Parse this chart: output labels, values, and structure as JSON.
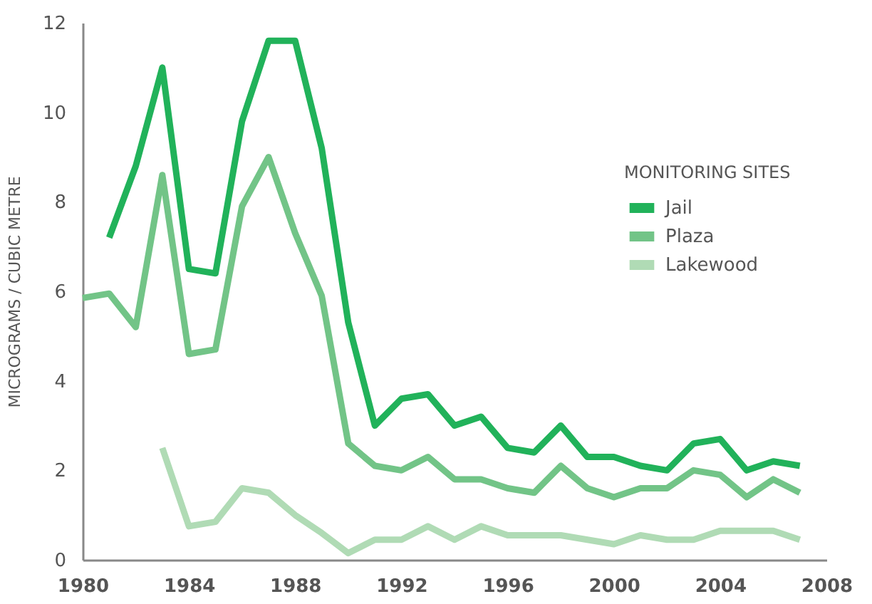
{
  "chart_data": {
    "type": "line",
    "ylabel": "MICROGRAMS / CUBIC METRE",
    "legend_title": "MONITORING SITES",
    "legend": "top right",
    "grid": false,
    "marker": "none",
    "line_style": "solid",
    "x": [
      1980,
      1981,
      1982,
      1983,
      1984,
      1985,
      1986,
      1987,
      1988,
      1989,
      1990,
      1991,
      1992,
      1993,
      1994,
      1995,
      1996,
      1997,
      1998,
      1999,
      2000,
      2001,
      2002,
      2003,
      2004,
      2005,
      2006,
      2007
    ],
    "xlim": [
      1980,
      2008
    ],
    "xticks": [
      1980,
      1984,
      1988,
      1992,
      1996,
      2000,
      2004,
      2008
    ],
    "ylim": [
      0,
      12
    ],
    "yticks": [
      0,
      2,
      4,
      6,
      8,
      10,
      12
    ],
    "series": [
      {
        "name": "Jail",
        "color": "#21b25a",
        "values": [
          null,
          7.2,
          8.8,
          11.0,
          6.5,
          6.4,
          9.8,
          11.6,
          11.6,
          9.2,
          5.3,
          3.0,
          3.6,
          3.7,
          3.0,
          3.2,
          2.5,
          2.4,
          3.0,
          2.3,
          2.3,
          2.1,
          2.0,
          2.6,
          2.7,
          2.0,
          2.2,
          2.1
        ]
      },
      {
        "name": "Plaza",
        "color": "#72c487",
        "values": [
          5.85,
          5.95,
          5.2,
          8.6,
          4.6,
          4.7,
          7.9,
          9.0,
          7.3,
          5.9,
          2.6,
          2.1,
          2.0,
          2.3,
          1.8,
          1.8,
          1.6,
          1.5,
          2.1,
          1.6,
          1.4,
          1.6,
          1.6,
          2.0,
          1.9,
          1.4,
          1.8,
          1.5
        ]
      },
      {
        "name": "Lakewood",
        "color": "#b0dbb5",
        "values": [
          null,
          null,
          null,
          2.5,
          0.75,
          0.85,
          1.6,
          1.5,
          1.0,
          0.6,
          0.15,
          0.45,
          0.45,
          0.75,
          0.45,
          0.75,
          0.55,
          0.55,
          0.55,
          0.45,
          0.35,
          0.55,
          0.45,
          0.45,
          0.65,
          0.65,
          0.65,
          0.45
        ]
      }
    ]
  }
}
